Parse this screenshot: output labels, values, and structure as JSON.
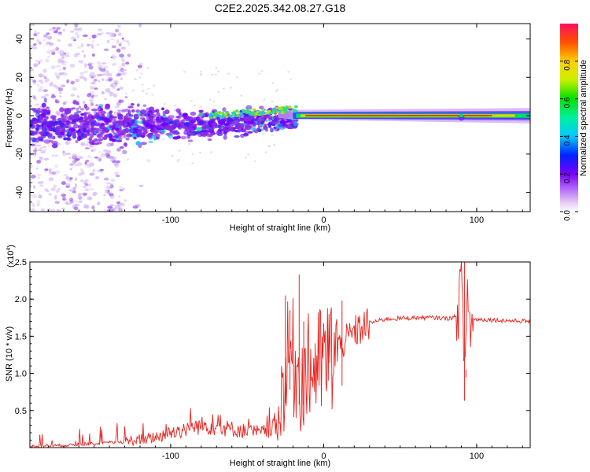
{
  "title": "C2E2.2025.342.08.27.G18",
  "chart_data": [
    {
      "type": "heatmap",
      "xlabel": "Height of straight line (km)",
      "ylabel": "Frequency (Hz)",
      "xlim": [
        -192,
        135
      ],
      "ylim": [
        -50,
        48
      ],
      "xticks": [
        -100,
        0,
        100
      ],
      "xtick_labels": [
        "-100",
        "0",
        "100"
      ],
      "yticks": [
        -40,
        -20,
        0,
        20,
        40
      ],
      "ytick_labels": [
        "-40",
        "-20",
        "0",
        "20",
        "40"
      ],
      "colorbar": {
        "label": "Normalized spectral amplitude",
        "range": [
          0,
          1
        ],
        "ticks": [
          0.0,
          0.2,
          0.4,
          0.6,
          0.8
        ],
        "tick_labels": [
          "0.0",
          "0.2",
          "0.4",
          "0.6",
          "0.8"
        ]
      },
      "features": [
        {
          "desc": "scattered weak noise",
          "x_range": [
            -192,
            -130
          ],
          "freq_range": [
            -50,
            48
          ],
          "amplitude": 0.1
        },
        {
          "desc": "broad noisy band",
          "x_range": [
            -192,
            -20
          ],
          "freq_range": [
            -15,
            10
          ],
          "amplitude": 0.3
        },
        {
          "desc": "coherent tone",
          "x_range": [
            -20,
            135
          ],
          "freq_center": 0,
          "amplitude": 0.95
        }
      ]
    },
    {
      "type": "line",
      "xlabel": "Height of straight line (km)",
      "ylabel": "SNR (10 * v/v)",
      "y_multiplier": "(x10",
      "y_multiplier_exp": "4",
      "xlim": [
        -192,
        135
      ],
      "ylim": [
        0,
        2.5
      ],
      "xticks": [
        -100,
        0,
        100
      ],
      "xtick_labels": [
        "-100",
        "0",
        "100"
      ],
      "yticks": [
        0.5,
        1.0,
        1.5,
        2.0,
        2.5
      ],
      "ytick_labels": [
        "0.5",
        "1.0",
        "1.5",
        "2.0",
        "2.5"
      ],
      "series": [
        {
          "name": "SNR",
          "color": "#e8231e",
          "x": [
            -192,
            -170,
            -150,
            -130,
            -110,
            -100,
            -90,
            -80,
            -70,
            -60,
            -50,
            -40,
            -30,
            -26,
            -22,
            -18,
            -15,
            -10,
            0,
            10,
            20,
            30,
            40,
            50,
            60,
            70,
            80,
            85,
            88,
            90,
            92,
            94,
            96,
            98,
            100,
            110,
            120,
            135
          ],
          "values": [
            0.02,
            0.03,
            0.05,
            0.08,
            0.14,
            0.2,
            0.25,
            0.3,
            0.28,
            0.25,
            0.22,
            0.2,
            0.3,
            0.9,
            1.3,
            1.1,
            0.9,
            1.05,
            1.15,
            1.35,
            1.55,
            1.68,
            1.73,
            1.74,
            1.75,
            1.75,
            1.74,
            1.75,
            1.8,
            2.5,
            1.05,
            2.1,
            1.6,
            1.72,
            1.73,
            1.72,
            1.71,
            1.7
          ]
        }
      ]
    }
  ]
}
